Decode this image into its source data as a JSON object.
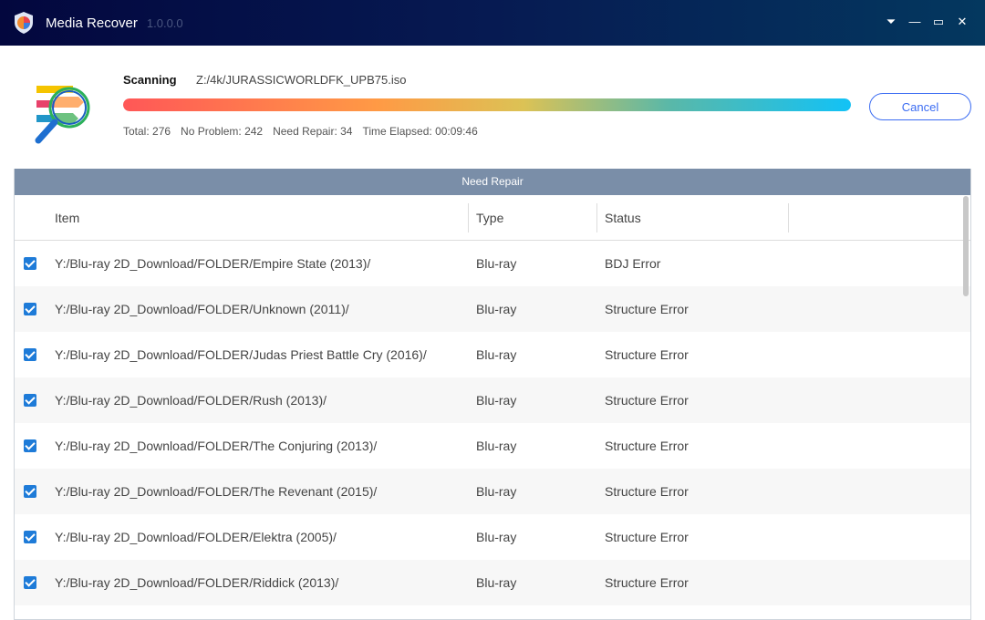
{
  "window": {
    "title": "Media Recover",
    "version": "1.0.0.0"
  },
  "scan": {
    "label": "Scanning",
    "path": "Z:/4k/JURASSICWORLDFK_UPB75.iso",
    "progress_percent": 100,
    "stats": {
      "total": "Total: 276",
      "no_problem": "No Problem: 242",
      "need_repair": "Need Repair: 34",
      "elapsed": "Time Elapsed: 00:09:46"
    },
    "cancel_label": "Cancel"
  },
  "panel": {
    "title": "Need Repair",
    "columns": [
      "Item",
      "Type",
      "Status"
    ],
    "rows": [
      {
        "item": "Y:/Blu-ray 2D_Download/FOLDER/Empire State (2013)/",
        "type": "Blu-ray",
        "status": "BDJ Error"
      },
      {
        "item": "Y:/Blu-ray 2D_Download/FOLDER/Unknown (2011)/",
        "type": "Blu-ray",
        "status": "Structure Error"
      },
      {
        "item": "Y:/Blu-ray 2D_Download/FOLDER/Judas Priest Battle Cry (2016)/",
        "type": "Blu-ray",
        "status": "Structure Error"
      },
      {
        "item": "Y:/Blu-ray 2D_Download/FOLDER/Rush (2013)/",
        "type": "Blu-ray",
        "status": "Structure Error"
      },
      {
        "item": "Y:/Blu-ray 2D_Download/FOLDER/The Conjuring (2013)/",
        "type": "Blu-ray",
        "status": "Structure Error"
      },
      {
        "item": "Y:/Blu-ray 2D_Download/FOLDER/The Revenant (2015)/",
        "type": "Blu-ray",
        "status": "Structure Error"
      },
      {
        "item": "Y:/Blu-ray 2D_Download/FOLDER/Elektra (2005)/",
        "type": "Blu-ray",
        "status": "Structure Error"
      },
      {
        "item": "Y:/Blu-ray 2D_Download/FOLDER/Riddick (2013)/",
        "type": "Blu-ray",
        "status": "Structure Error"
      }
    ]
  },
  "colors": {
    "accent": "#3b6cf2",
    "checkbox": "#1e7bd8",
    "header": "#7a8ea8"
  }
}
